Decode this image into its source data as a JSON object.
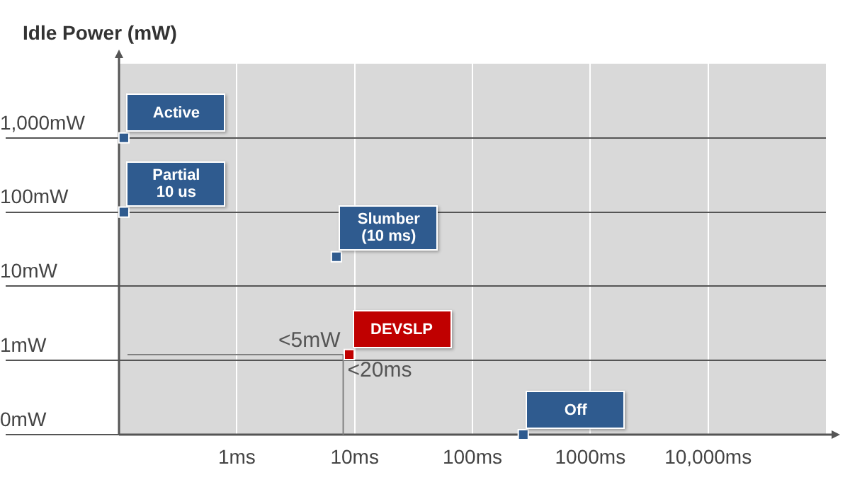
{
  "chart_data": {
    "type": "scatter",
    "ylabel": "Idle Power (mW)",
    "log": "xy",
    "legend": false,
    "grid": true,
    "xlim": [
      0.1,
      100000
    ],
    "xticks": [
      {
        "value": 1,
        "label": "1ms"
      },
      {
        "value": 10,
        "label": "10ms"
      },
      {
        "value": 100,
        "label": "100ms"
      },
      {
        "value": 1000,
        "label": "1000ms"
      },
      {
        "value": 10000,
        "label": "10,000ms"
      }
    ],
    "ylim": [
      0.1,
      10000
    ],
    "yticks": [
      {
        "value": 0.1,
        "label": "0mW"
      },
      {
        "value": 1,
        "label": "1mW"
      },
      {
        "value": 10,
        "label": "10mW"
      },
      {
        "value": 100,
        "label": "100mW"
      },
      {
        "value": 1000,
        "label": "1,000mW"
      }
    ],
    "series": [
      {
        "name": "Active",
        "color": "#2f5b8f",
        "x": [
          0.11
        ],
        "values": [
          1000
        ]
      },
      {
        "name": "Partial\n10 us",
        "color": "#2f5b8f",
        "x": [
          0.11
        ],
        "values": [
          100
        ]
      },
      {
        "name": "Slumber\n(10 ms)",
        "color": "#2f5b8f",
        "x": [
          7
        ],
        "values": [
          25
        ]
      },
      {
        "name": "DEVSLP",
        "color": "#c00000",
        "x": [
          9
        ],
        "values": [
          1.2
        ]
      },
      {
        "name": "Off",
        "color": "#2f5b8f",
        "x": [
          270
        ],
        "values": [
          0.1
        ]
      }
    ],
    "ref_lines": [
      {
        "axis": "y",
        "value": 1.2,
        "label": "<5mW",
        "color": "#808080"
      },
      {
        "axis": "x",
        "value": 8,
        "label": "<20ms",
        "color": "#808080"
      }
    ]
  }
}
